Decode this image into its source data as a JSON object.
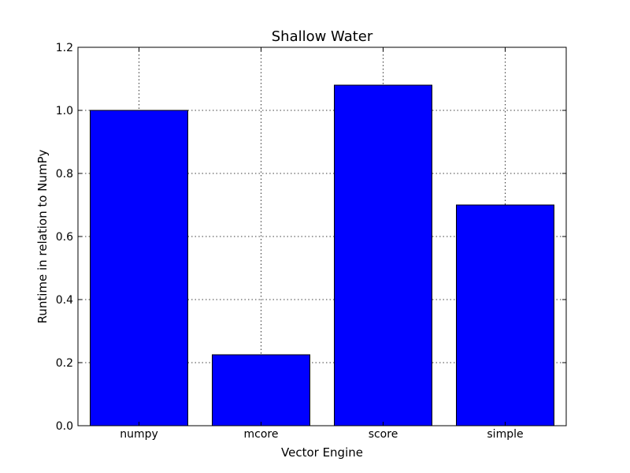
{
  "chart_data": {
    "type": "bar",
    "title": "Shallow Water",
    "xlabel": "Vector Engine",
    "ylabel": "Runtime in relation to NumPy",
    "categories": [
      "numpy",
      "mcore",
      "score",
      "simple"
    ],
    "values": [
      1.0,
      0.225,
      1.08,
      0.7
    ],
    "ylim": [
      0,
      1.2
    ],
    "yticks": [
      "0.0",
      "0.2",
      "0.4",
      "0.6",
      "0.8",
      "1.0",
      "1.2"
    ],
    "grid": true,
    "bar_color": "#0000ff"
  }
}
